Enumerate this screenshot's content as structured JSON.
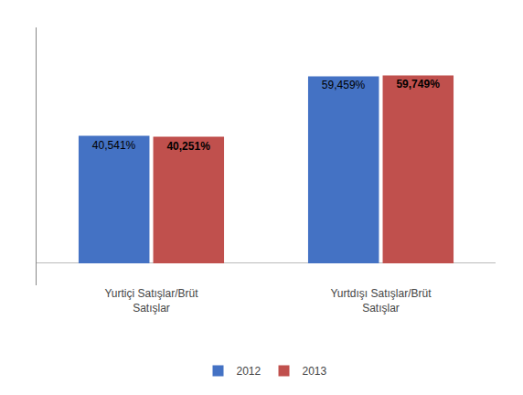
{
  "chart_data": {
    "type": "bar",
    "categories": [
      "Yurtiçi Satışlar/Brüt\nSatışlar",
      "Yurtdışı Satışlar/Brüt\nSatışlar"
    ],
    "series": [
      {
        "name": "2012",
        "color": "#4472C4",
        "values": [
          40.541,
          59.459
        ],
        "value_labels": [
          "40,541%",
          "59,459%"
        ]
      },
      {
        "name": "2013",
        "color": "#C0504D",
        "values": [
          40.251,
          59.749
        ],
        "value_labels": [
          "40,251%",
          "59,749%"
        ]
      }
    ],
    "ylim": [
      -7,
      75
    ],
    "yticks": [],
    "tick_labels": "x",
    "data_labels": true,
    "legend": "bottom",
    "grid": false
  }
}
